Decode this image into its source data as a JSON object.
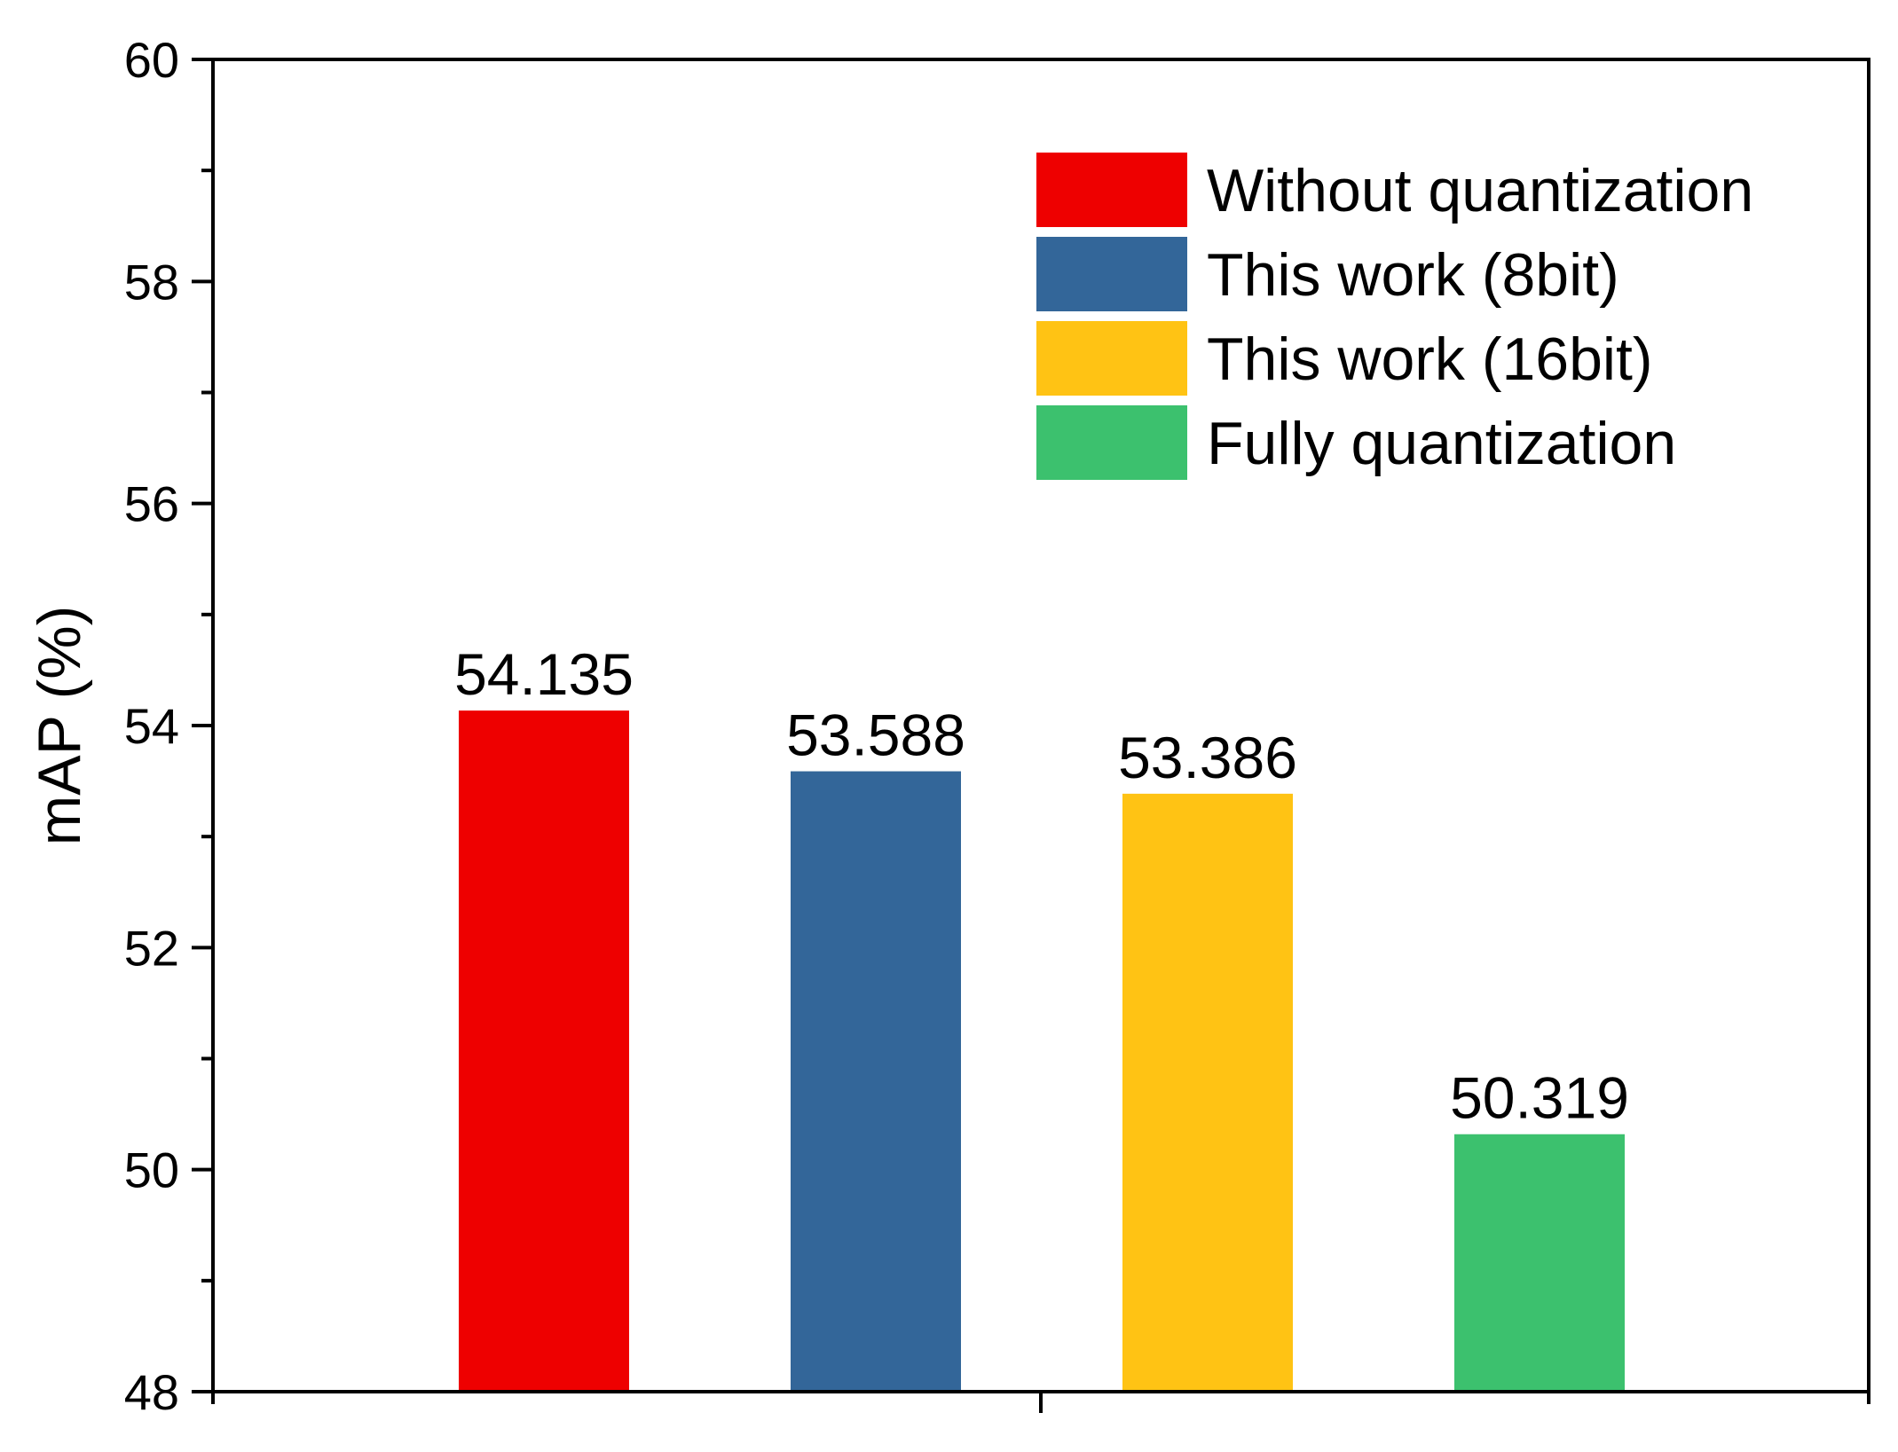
{
  "chart_data": {
    "type": "bar",
    "ylabel": "mAP (%)",
    "xlabel": "",
    "ylim": [
      48,
      60
    ],
    "yticks": [
      48,
      50,
      52,
      54,
      56,
      58,
      60
    ],
    "grid": false,
    "legend_position": "top-right",
    "series": [
      {
        "name": "Without quantization",
        "value": 54.135,
        "value_label": "54.135",
        "color": "#EE0000"
      },
      {
        "name": "This work (8bit)",
        "value": 53.588,
        "value_label": "53.588",
        "color": "#336699"
      },
      {
        "name": "This work (16bit)",
        "value": 53.386,
        "value_label": "53.386",
        "color": "#FFC314"
      },
      {
        "name": "Fully quantization",
        "value": 50.319,
        "value_label": "50.319",
        "color": "#3CC16E"
      }
    ]
  }
}
